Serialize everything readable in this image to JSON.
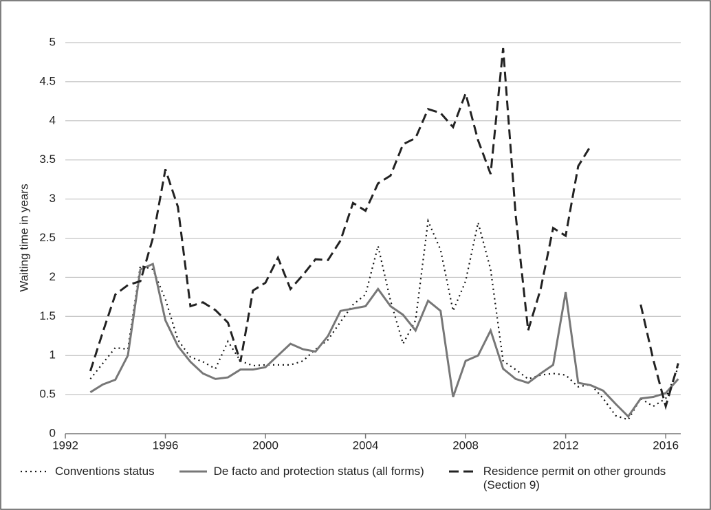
{
  "chart_data": {
    "type": "line",
    "y_label": "Waiting time in years",
    "x": [
      1993,
      1993.5,
      1994,
      1994.5,
      1995,
      1995.5,
      1996,
      1996.5,
      1997,
      1997.5,
      1998,
      1998.5,
      1999,
      1999.5,
      2000,
      2000.5,
      2001,
      2001.5,
      2002,
      2002.5,
      2003,
      2003.5,
      2004,
      2004.5,
      2005,
      2005.5,
      2006,
      2006.5,
      2007,
      2007.5,
      2008,
      2008.5,
      2009,
      2009.5,
      2010,
      2010.5,
      2011,
      2011.5,
      2012,
      2012.5,
      2013,
      2013.5,
      2014,
      2014.5,
      2015,
      2015.5,
      2016,
      2016.5
    ],
    "series": [
      {
        "name": "Conventions status",
        "color": "#111111",
        "style": "dotted",
        "values": [
          0.7,
          0.9,
          1.1,
          1.08,
          2.15,
          2.1,
          1.72,
          1.2,
          0.98,
          0.92,
          0.83,
          1.18,
          0.93,
          0.87,
          0.88,
          0.88,
          0.88,
          0.93,
          1.08,
          1.2,
          1.43,
          1.65,
          1.78,
          2.4,
          1.7,
          1.15,
          1.45,
          2.72,
          2.35,
          1.57,
          1.95,
          2.7,
          2.1,
          0.93,
          0.82,
          0.7,
          0.75,
          0.77,
          0.75,
          0.6,
          0.63,
          0.45,
          0.23,
          0.18,
          0.45,
          0.35,
          0.45,
          0.85
        ]
      },
      {
        "name": "De facto and protection status (all forms)",
        "color": "#777777",
        "style": "solid",
        "values": [
          0.53,
          0.63,
          0.69,
          1.0,
          2.1,
          2.17,
          1.45,
          1.12,
          0.92,
          0.77,
          0.7,
          0.72,
          0.82,
          0.82,
          0.85,
          1.0,
          1.15,
          1.08,
          1.05,
          1.25,
          1.57,
          1.6,
          1.63,
          1.85,
          1.63,
          1.52,
          1.32,
          1.7,
          1.57,
          0.47,
          0.93,
          1.0,
          1.32,
          0.83,
          0.7,
          0.65,
          0.77,
          0.88,
          1.81,
          0.65,
          0.62,
          0.55,
          0.38,
          0.22,
          0.45,
          0.47,
          0.52,
          0.7
        ]
      },
      {
        "name": "Residence permit on other grounds (Section 9)",
        "color": "#222222",
        "style": "dashed",
        "values": [
          0.8,
          1.3,
          1.78,
          1.9,
          1.95,
          2.5,
          3.38,
          2.9,
          1.63,
          1.68,
          1.58,
          1.42,
          0.92,
          1.83,
          1.93,
          2.25,
          1.85,
          2.03,
          2.23,
          2.22,
          2.47,
          2.95,
          2.85,
          3.2,
          3.3,
          3.7,
          3.78,
          4.15,
          4.1,
          3.92,
          4.35,
          3.75,
          3.32,
          4.93,
          2.8,
          1.32,
          1.85,
          2.63,
          2.53,
          3.42,
          3.68,
          null,
          null,
          null,
          1.65,
          0.95,
          0.35,
          0.9
        ]
      }
    ],
    "xlim": [
      1992,
      2016.6
    ],
    "xticks": [
      1992,
      1996,
      2000,
      2004,
      2008,
      2012,
      2016
    ],
    "ylim": [
      0,
      5
    ],
    "yticks": [
      0,
      0.5,
      1,
      1.5,
      2,
      2.5,
      3,
      3.5,
      4,
      4.5,
      5
    ],
    "grid": true
  }
}
